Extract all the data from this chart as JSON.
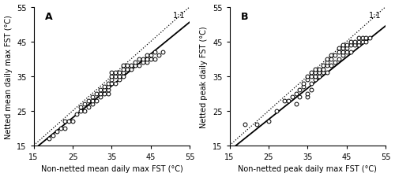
{
  "panel_A": {
    "label": "A",
    "xlabel": "Non-netted mean daily max FST (°C)",
    "ylabel": "Netted mean daily max FST (°C)",
    "slope": 0.92,
    "xlim": [
      15,
      55
    ],
    "ylim": [
      15,
      55
    ],
    "xticks": [
      15,
      25,
      35,
      45,
      55
    ],
    "yticks": [
      15,
      25,
      35,
      45,
      55
    ],
    "x": [
      19,
      20,
      21,
      22,
      23,
      23,
      24,
      25,
      26,
      27,
      27,
      28,
      28,
      29,
      29,
      30,
      30,
      30,
      31,
      31,
      32,
      32,
      32,
      33,
      33,
      33,
      34,
      34,
      34,
      34,
      35,
      35,
      35,
      35,
      36,
      36,
      36,
      37,
      37,
      37,
      38,
      38,
      38,
      38,
      39,
      39,
      40,
      40,
      41,
      41,
      42,
      42,
      43,
      43,
      44,
      44,
      44,
      45,
      45,
      46,
      46,
      47,
      48
    ],
    "y": [
      17,
      18,
      19,
      20,
      20,
      22,
      22,
      22,
      24,
      25,
      26,
      25,
      27,
      26,
      28,
      27,
      28,
      29,
      28,
      30,
      29,
      30,
      31,
      30,
      31,
      32,
      30,
      31,
      32,
      33,
      33,
      34,
      35,
      36,
      33,
      35,
      36,
      34,
      35,
      36,
      35,
      36,
      37,
      38,
      37,
      38,
      37,
      38,
      38,
      39,
      38,
      40,
      39,
      40,
      39,
      40,
      41,
      40,
      41,
      40,
      42,
      41,
      42
    ]
  },
  "panel_B": {
    "label": "B",
    "xlabel": "Non-netted peak daily max FST (°C)",
    "ylabel": "Netted peak daily FST (°C)",
    "slope": 0.9,
    "xlim": [
      15,
      55
    ],
    "ylim": [
      15,
      55
    ],
    "xticks": [
      15,
      25,
      35,
      45,
      55
    ],
    "yticks": [
      15,
      25,
      35,
      45,
      55
    ],
    "x": [
      19,
      22,
      25,
      27,
      29,
      30,
      31,
      32,
      32,
      33,
      33,
      34,
      34,
      35,
      35,
      35,
      35,
      36,
      36,
      36,
      36,
      37,
      37,
      37,
      37,
      38,
      38,
      38,
      39,
      39,
      39,
      40,
      40,
      40,
      40,
      41,
      41,
      41,
      42,
      42,
      43,
      43,
      43,
      44,
      44,
      44,
      44,
      45,
      45,
      45,
      46,
      46,
      46,
      47,
      47,
      48,
      48,
      48,
      49,
      49,
      50,
      50,
      51
    ],
    "y": [
      21,
      21,
      22,
      25,
      28,
      28,
      29,
      27,
      30,
      29,
      31,
      32,
      33,
      29,
      30,
      34,
      35,
      31,
      33,
      35,
      36,
      34,
      35,
      36,
      37,
      35,
      36,
      37,
      36,
      37,
      38,
      36,
      38,
      39,
      40,
      38,
      40,
      41,
      39,
      41,
      40,
      42,
      43,
      41,
      42,
      43,
      44,
      42,
      43,
      44,
      42,
      44,
      45,
      44,
      45,
      44,
      45,
      46,
      45,
      46,
      45,
      46,
      46
    ]
  },
  "line_label": "1:1",
  "marker_size": 3.5,
  "marker_color": "white",
  "marker_edgecolor": "black",
  "marker_edgewidth": 0.7,
  "regression_linewidth": 1.3,
  "oneone_linewidth": 0.9,
  "oneone_linestyle": "dotted",
  "label_fontsize": 7,
  "tick_fontsize": 7,
  "panel_label_fontsize": 9,
  "background_color": "#ffffff"
}
